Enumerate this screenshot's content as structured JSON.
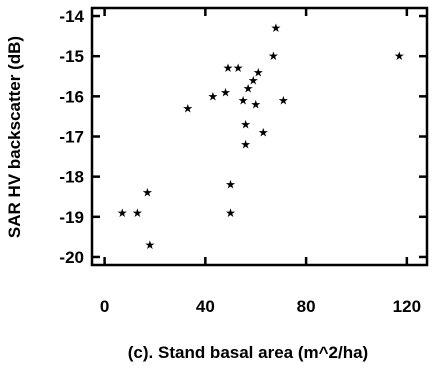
{
  "chart_data": {
    "type": "scatter",
    "title": "",
    "xlabel": "(c).  Stand basal area (m^2/ha)",
    "ylabel": "SAR HV backscatter (dB)",
    "xlim": [
      -5,
      128
    ],
    "ylim": [
      -20.2,
      -13.8
    ],
    "xticks": [
      0,
      40,
      80,
      120
    ],
    "yticks": [
      -14,
      -15,
      -16,
      -17,
      -18,
      -19,
      -20
    ],
    "grid": false,
    "marker": "star",
    "points": [
      {
        "x": 7,
        "y": -18.9
      },
      {
        "x": 13,
        "y": -18.9
      },
      {
        "x": 17,
        "y": -18.4
      },
      {
        "x": 18,
        "y": -19.7
      },
      {
        "x": 33,
        "y": -16.3
      },
      {
        "x": 43,
        "y": -16.0
      },
      {
        "x": 48,
        "y": -15.9
      },
      {
        "x": 49,
        "y": -15.3
      },
      {
        "x": 50,
        "y": -18.2
      },
      {
        "x": 50,
        "y": -18.9
      },
      {
        "x": 53,
        "y": -15.3
      },
      {
        "x": 55,
        "y": -16.1
      },
      {
        "x": 56,
        "y": -16.7
      },
      {
        "x": 56,
        "y": -17.2
      },
      {
        "x": 57,
        "y": -15.8
      },
      {
        "x": 59,
        "y": -15.6
      },
      {
        "x": 60,
        "y": -16.2
      },
      {
        "x": 61,
        "y": -15.4
      },
      {
        "x": 63,
        "y": -16.9
      },
      {
        "x": 67,
        "y": -15.0
      },
      {
        "x": 68,
        "y": -14.3
      },
      {
        "x": 71,
        "y": -16.1
      },
      {
        "x": 117,
        "y": -15.0
      }
    ]
  }
}
